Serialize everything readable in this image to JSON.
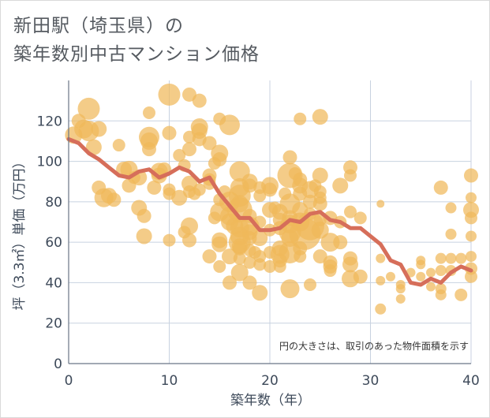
{
  "header": {
    "title_line1": "新田駅（埼玉県）の",
    "title_line2": "築年数別中古マンション価格"
  },
  "colors": {
    "bubble": "#f0b95a",
    "bubble_opacity": 0.72,
    "line": "#d66e5a",
    "grid": "#c8d2e0",
    "axis_text": "#3e4a5a"
  },
  "chart_data": {
    "type": "scatter",
    "xlabel": "築年数（年）",
    "ylabel": "坪（3.3㎡）単価（万円）",
    "xlim": [
      0,
      40
    ],
    "ylim": [
      0,
      140
    ],
    "x_ticks": [
      "0",
      "10",
      "20",
      "30",
      "40"
    ],
    "y_ticks": [
      "0",
      "20",
      "40",
      "60",
      "80",
      "100",
      "120"
    ],
    "grid": true,
    "annotation": "円の大きさは、取引のあった物件面積を示す",
    "series": [
      {
        "type": "bubble",
        "points": [
          [
            0.5,
            113,
            11
          ],
          [
            1,
            120,
            9
          ],
          [
            1.5,
            116,
            12
          ],
          [
            2,
            126,
            14
          ],
          [
            2,
            115,
            13
          ],
          [
            2.5,
            107,
            10
          ],
          [
            3,
            116,
            10
          ],
          [
            3,
            87,
            9
          ],
          [
            3.5,
            82,
            12
          ],
          [
            4,
            83,
            10
          ],
          [
            4.5,
            81,
            9
          ],
          [
            5,
            108,
            8
          ],
          [
            5.5,
            96,
            10
          ],
          [
            6,
            96,
            11
          ],
          [
            6,
            88,
            9
          ],
          [
            6.5,
            92,
            8
          ],
          [
            7,
            92,
            10
          ],
          [
            7,
            77,
            10
          ],
          [
            7.5,
            73,
            9
          ],
          [
            7.5,
            63,
            10
          ],
          [
            8,
            112,
            13
          ],
          [
            8,
            110,
            11
          ],
          [
            8,
            106,
            9
          ],
          [
            8,
            124,
            8
          ],
          [
            8.5,
            87,
            9
          ],
          [
            9,
            95,
            11
          ],
          [
            9,
            93,
            10
          ],
          [
            9.5,
            96,
            9
          ],
          [
            10,
            133,
            14
          ],
          [
            10,
            114,
            9
          ],
          [
            10,
            86,
            8
          ],
          [
            10,
            84,
            8
          ],
          [
            10,
            61,
            8
          ],
          [
            11,
            103,
            8
          ],
          [
            11,
            82,
            10
          ],
          [
            11.5,
            98,
            8
          ],
          [
            11.5,
            65,
            8
          ],
          [
            12,
            133,
            9
          ],
          [
            12,
            112,
            8
          ],
          [
            12,
            106,
            9
          ],
          [
            12,
            89,
            10
          ],
          [
            12,
            85,
            8
          ],
          [
            12,
            68,
            11
          ],
          [
            12,
            61,
            9
          ],
          [
            12.5,
            84,
            8
          ],
          [
            13,
            130,
            9
          ],
          [
            13,
            117,
            11
          ],
          [
            13,
            115,
            10
          ],
          [
            13,
            111,
            9
          ],
          [
            13,
            86,
            8
          ],
          [
            14,
            109,
            9
          ],
          [
            14,
            93,
            9
          ],
          [
            14,
            91,
            8
          ],
          [
            14,
            89,
            8
          ],
          [
            14,
            53,
            9
          ],
          [
            14.5,
            99,
            8
          ],
          [
            14.5,
            72,
            8
          ],
          [
            15,
            121,
            8
          ],
          [
            15,
            104,
            11
          ],
          [
            15,
            101,
            9
          ],
          [
            15,
            81,
            8
          ],
          [
            15,
            75,
            12
          ],
          [
            15,
            61,
            10
          ],
          [
            15,
            59,
            10
          ],
          [
            15,
            48,
            8
          ],
          [
            15.5,
            85,
            8
          ],
          [
            16,
            118,
            13
          ],
          [
            16,
            80,
            13
          ],
          [
            16,
            73,
            12
          ],
          [
            16,
            70,
            11
          ],
          [
            16,
            53,
            10
          ],
          [
            16,
            40,
            9
          ],
          [
            16.5,
            68,
            11
          ],
          [
            17,
            95,
            13
          ],
          [
            17,
            87,
            12
          ],
          [
            17,
            83,
            14
          ],
          [
            17,
            79,
            11
          ],
          [
            17,
            76,
            16
          ],
          [
            17,
            67,
            12
          ],
          [
            17,
            63,
            12
          ],
          [
            17,
            60,
            14
          ],
          [
            17,
            58,
            10
          ],
          [
            17,
            57,
            9
          ],
          [
            17,
            52,
            8
          ],
          [
            17,
            45,
            11
          ],
          [
            18,
            90,
            10
          ],
          [
            18,
            88,
            9
          ],
          [
            18,
            73,
            9
          ],
          [
            18,
            68,
            12
          ],
          [
            18,
            65,
            10
          ],
          [
            18,
            62,
            9
          ],
          [
            18,
            56,
            8
          ],
          [
            18,
            50,
            8
          ],
          [
            18,
            40,
            9
          ],
          [
            18.5,
            55,
            8
          ],
          [
            19,
            87,
            8
          ],
          [
            19,
            83,
            8
          ],
          [
            19,
            70,
            8
          ],
          [
            19,
            62,
            10
          ],
          [
            19,
            53,
            8
          ],
          [
            19,
            49,
            8
          ],
          [
            19,
            35,
            10
          ],
          [
            20,
            88,
            11
          ],
          [
            20,
            86,
            9
          ],
          [
            20,
            76,
            10
          ],
          [
            20,
            66,
            8
          ],
          [
            20,
            55,
            8
          ],
          [
            20,
            48,
            8
          ],
          [
            20.5,
            77,
            8
          ],
          [
            21,
            75,
            10
          ],
          [
            21,
            71,
            9
          ],
          [
            21,
            67,
            9
          ],
          [
            21,
            57,
            10
          ],
          [
            21,
            54,
            12
          ],
          [
            21,
            51,
            9
          ],
          [
            21,
            48,
            8
          ],
          [
            21.5,
            84,
            8
          ],
          [
            22,
            102,
            9
          ],
          [
            22,
            93,
            16
          ],
          [
            22,
            79,
            13
          ],
          [
            22,
            72,
            10
          ],
          [
            22,
            69,
            12
          ],
          [
            22,
            65,
            14
          ],
          [
            22,
            62,
            11
          ],
          [
            22,
            55,
            14
          ],
          [
            22,
            37,
            12
          ],
          [
            22.5,
            94,
            8
          ],
          [
            23,
            121,
            8
          ],
          [
            23,
            91,
            9
          ],
          [
            23,
            88,
            10
          ],
          [
            23,
            84,
            9
          ],
          [
            23,
            76,
            10
          ],
          [
            23,
            70,
            12
          ],
          [
            23,
            57,
            9
          ],
          [
            23,
            53,
            8
          ],
          [
            23.5,
            64,
            20
          ],
          [
            24,
            86,
            11
          ],
          [
            24,
            80,
            9
          ],
          [
            24,
            74,
            8
          ],
          [
            24,
            68,
            18
          ],
          [
            24,
            39,
            8
          ],
          [
            24.5,
            88,
            8
          ],
          [
            25,
            122,
            10
          ],
          [
            25,
            93,
            10
          ],
          [
            25,
            85,
            8
          ],
          [
            25,
            82,
            8
          ],
          [
            25,
            79,
            9
          ],
          [
            25,
            71,
            8
          ],
          [
            25,
            66,
            11
          ],
          [
            25,
            53,
            9
          ],
          [
            26,
            72,
            9
          ],
          [
            26,
            60,
            12
          ],
          [
            26,
            50,
            9
          ],
          [
            26,
            48,
            9
          ],
          [
            26,
            46,
            8
          ],
          [
            27,
            88,
            10
          ],
          [
            27,
            70,
            8
          ],
          [
            27,
            60,
            9
          ],
          [
            28,
            97,
            9
          ],
          [
            28,
            93,
            8
          ],
          [
            28,
            75,
            8
          ],
          [
            28,
            52,
            9
          ],
          [
            28,
            49,
            10
          ],
          [
            28,
            42,
            11
          ],
          [
            29,
            72,
            8
          ],
          [
            29,
            43,
            9
          ],
          [
            31,
            79,
            5
          ],
          [
            31,
            52,
            6
          ],
          [
            31,
            41,
            6
          ],
          [
            31,
            27,
            7
          ],
          [
            32,
            43,
            6
          ],
          [
            33,
            39,
            6
          ],
          [
            33,
            37,
            6
          ],
          [
            33,
            32,
            6
          ],
          [
            34,
            45,
            6
          ],
          [
            35,
            51,
            6
          ],
          [
            35,
            49,
            6
          ],
          [
            35,
            43,
            6
          ],
          [
            36,
            38,
            6
          ],
          [
            36,
            45,
            6
          ],
          [
            37,
            87,
            9
          ],
          [
            37,
            52,
            7
          ],
          [
            37,
            46,
            7
          ],
          [
            37,
            37,
            7
          ],
          [
            37,
            34,
            7
          ],
          [
            38,
            77,
            7
          ],
          [
            38,
            64,
            7
          ],
          [
            38,
            52,
            7
          ],
          [
            38,
            46,
            7
          ],
          [
            39,
            52,
            7
          ],
          [
            39,
            34,
            8
          ],
          [
            40,
            93,
            9
          ],
          [
            40,
            82,
            7
          ],
          [
            40,
            76,
            10
          ],
          [
            40,
            72,
            8
          ],
          [
            40,
            63,
            7
          ],
          [
            40,
            53,
            7
          ],
          [
            40,
            47,
            8
          ],
          [
            40,
            43,
            8
          ]
        ]
      },
      {
        "type": "line",
        "x": [
          0,
          1,
          2,
          3,
          4,
          5,
          6,
          7,
          8,
          9,
          10,
          11,
          12,
          13,
          14,
          15,
          16,
          17,
          18,
          19,
          20,
          21,
          22,
          23,
          24,
          25,
          26,
          27,
          28,
          29,
          30,
          31,
          32,
          33,
          34,
          35,
          36,
          37,
          38,
          39,
          40
        ],
        "y": [
          111,
          109,
          104,
          101,
          97,
          93,
          92,
          95,
          96,
          92,
          94,
          97,
          95,
          90,
          92,
          84,
          78,
          72,
          72,
          66,
          66,
          67,
          71,
          70,
          74,
          75,
          71,
          70,
          67,
          67,
          63,
          59,
          51,
          49,
          40,
          39,
          42,
          40,
          45,
          48,
          46
        ]
      }
    ]
  }
}
